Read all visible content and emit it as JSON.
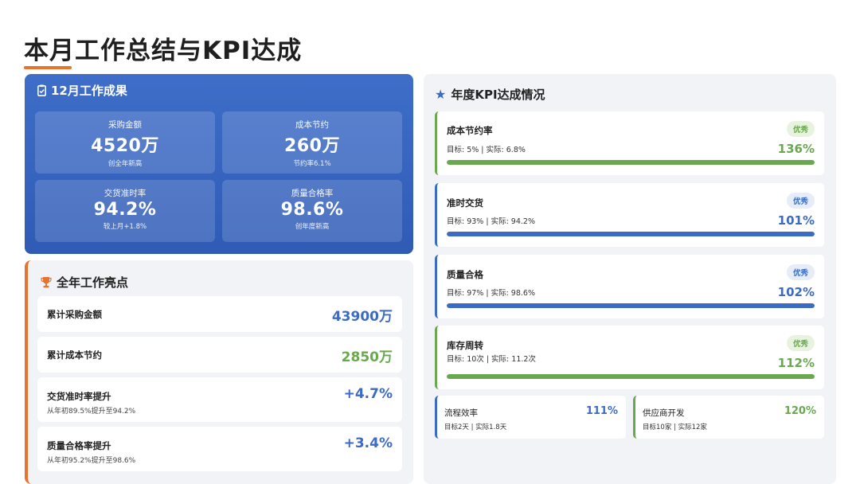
{
  "page": {
    "title": "本月工作总结与KPI达成"
  },
  "colors": {
    "accent_orange": "#e8732c",
    "blue": "#3b6bc4",
    "green": "#6aa84f",
    "badge_green_bg": "#e8f3df",
    "badge_blue_bg": "#e6ecf8"
  },
  "month": {
    "heading": "12月工作成果",
    "icon": "clipboard-check-icon",
    "stats": [
      {
        "label": "采购金额",
        "value": "4520万",
        "note": "创全年新高"
      },
      {
        "label": "成本节约",
        "value": "260万",
        "note": "节约率6.1%"
      },
      {
        "label": "交货准时率",
        "value": "94.2%",
        "note": "较上月+1.8%"
      },
      {
        "label": "质量合格率",
        "value": "98.6%",
        "note": "创年度新高"
      }
    ]
  },
  "highlights": {
    "heading": "全年工作亮点",
    "icon": "trophy-icon",
    "rows": [
      {
        "label": "累计采购金额",
        "value": "43900万",
        "sub": "",
        "color": "blue"
      },
      {
        "label": "累计成本节约",
        "value": "2850万",
        "sub": "",
        "color": "green"
      },
      {
        "label": "交货准时率提升",
        "value": "+4.7%",
        "sub": "从年初89.5%提升至94.2%",
        "color": "blue"
      },
      {
        "label": "质量合格率提升",
        "value": "+3.4%",
        "sub": "从年初95.2%提升至98.6%",
        "color": "blue"
      }
    ]
  },
  "kpi": {
    "heading": "年度KPI达成情况",
    "icon": "star-icon",
    "items": [
      {
        "name": "成本节约率",
        "detail": "目标: 5% | 实际: 6.8%",
        "badge": "优秀",
        "pct": "136%",
        "progress": 100,
        "color": "green"
      },
      {
        "name": "准时交货",
        "detail": "目标: 93% | 实际: 94.2%",
        "badge": "优秀",
        "pct": "101%",
        "progress": 100,
        "color": "blue"
      },
      {
        "name": "质量合格",
        "detail": "目标: 97% | 实际: 98.6%",
        "badge": "优秀",
        "pct": "102%",
        "progress": 100,
        "color": "blue"
      },
      {
        "name": "库存周转",
        "detail": "目标: 10次 | 实际: 11.2次",
        "badge": "优秀",
        "pct": "112%",
        "progress": 100,
        "color": "green"
      }
    ],
    "mini": [
      {
        "name": "流程效率",
        "detail": "目标2天 | 实际1.8天",
        "pct": "111%",
        "color": "blue"
      },
      {
        "name": "供应商开发",
        "detail": "目标10家 | 实际12家",
        "pct": "120%",
        "color": "green"
      }
    ]
  }
}
